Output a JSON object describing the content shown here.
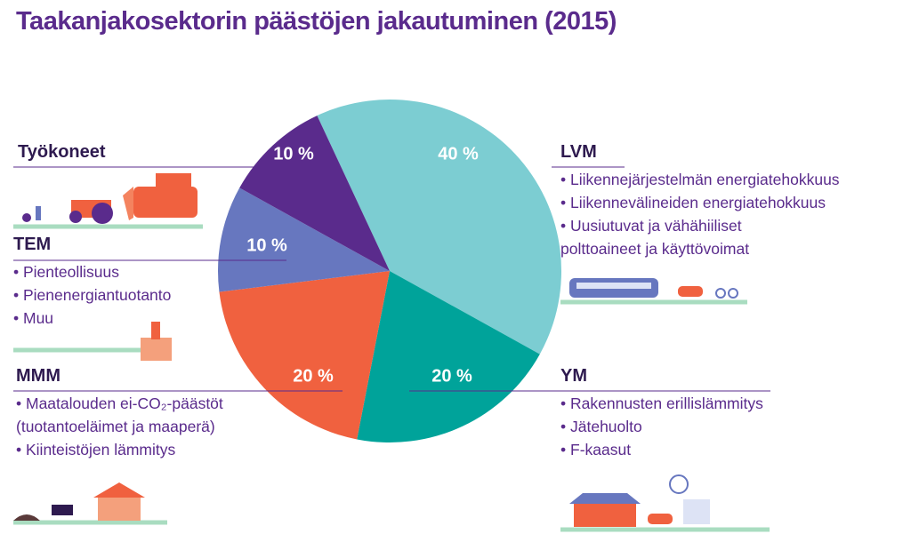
{
  "title": "Taakanjakosektorin päästöjen jakautuminen (2015)",
  "chart_data": {
    "type": "pie",
    "categories": [
      "LVM",
      "YM",
      "MMM",
      "TEM",
      "Työkoneet"
    ],
    "values": [
      40,
      20,
      20,
      10,
      10
    ],
    "value_labels": [
      "40 %",
      "20 %",
      "20 %",
      "10 %",
      "10 %"
    ],
    "colors": [
      "#7ccdd2",
      "#00a39a",
      "#f0613f",
      "#6777bf",
      "#5a2b8c"
    ],
    "bullets": [
      [
        [
          "Liikennejärjestelmän energiatehokkuus"
        ],
        [
          "Liikennevälineiden energiatehokkuus"
        ],
        [
          "Uusiutuvat ja vähähiiliset",
          "polttoaineet ja käyttövoimat"
        ]
      ],
      [
        [
          "Rakennusten erillislämmitys"
        ],
        [
          "Jätehuolto"
        ],
        [
          "F-kaasut"
        ]
      ],
      [
        [
          "Maatalouden ei-CO₂-päästöt",
          "(tuotantoeläimet ja maaperä)"
        ],
        [
          "Kiinteistöjen lämmitys"
        ]
      ],
      [
        [
          "Pienteollisuus"
        ],
        [
          "Pienenergiantuotanto"
        ],
        [
          "Muu"
        ]
      ],
      []
    ]
  }
}
